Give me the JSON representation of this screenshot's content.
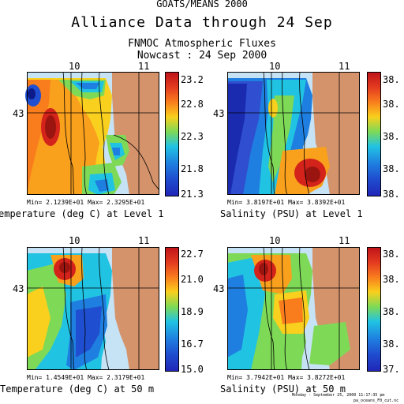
{
  "header": {
    "top": "GOATS/MEANS 2000",
    "main": "Alliance Data through 24 Sep",
    "sub1": "FNMOC Atmospheric Fluxes",
    "sub2": "Nowcast : 24 Sep 2000"
  },
  "axes": {
    "lon_a": "10",
    "lon_b": "11",
    "lat": "43"
  },
  "panels": [
    {
      "min_max": "Min= 2.1239E+01     Max= 2.3295E+01",
      "caption": "emperature (deg C) at Level 1",
      "colorbar_labels": [
        "23.2",
        "22.8",
        "22.3",
        "21.8",
        "21.3"
      ]
    },
    {
      "min_max": "Min= 3.8197E+01     Max= 3.8392E+01",
      "caption": "Salinity (PSU) at Level 1",
      "colorbar_labels": [
        "38.",
        "38.",
        "38.",
        "38.",
        "38."
      ]
    },
    {
      "min_max": "Min= 1.4549E+01     Max= 2.3179E+01",
      "caption": "Temperature (deg C) at 50 m",
      "colorbar_labels": [
        "22.7",
        "21.0",
        "18.9",
        "16.7",
        "15.0"
      ]
    },
    {
      "min_max": "Min= 3.7942E+01     Max= 3.8272E+01",
      "caption": "Salinity (PSU) at 50 m",
      "colorbar_labels": [
        "38.",
        "38.",
        "38.",
        "38.",
        "37."
      ]
    }
  ],
  "footer": {
    "line1": "Monday - September 25, 2000 11:17:35 pm",
    "line2": "pa_oceans_F0_cut.nc"
  }
}
